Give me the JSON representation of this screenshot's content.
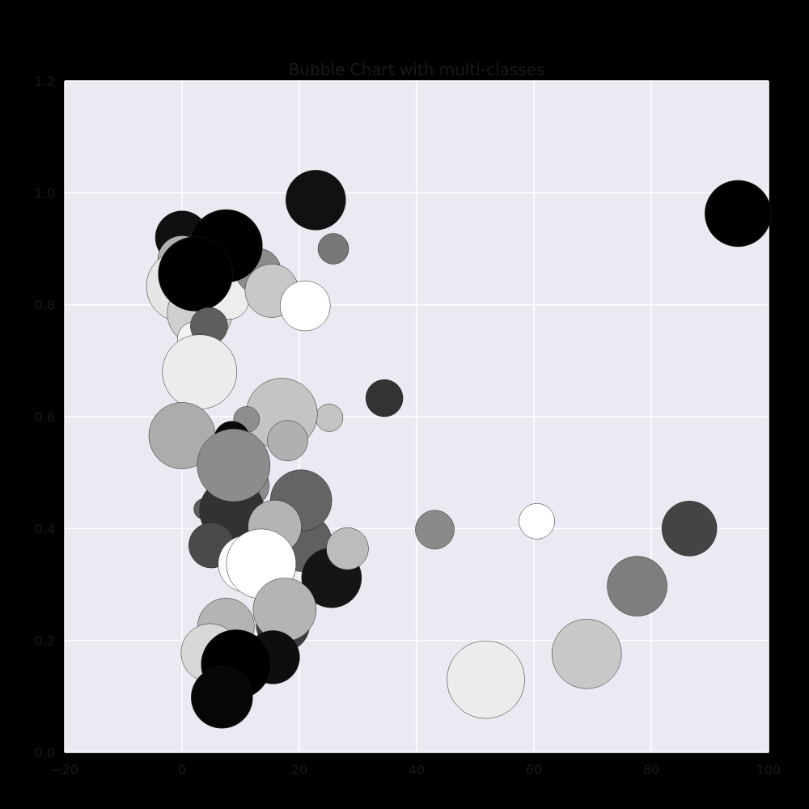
{
  "chart_data": {
    "type": "scatter",
    "title": "Bubble Chart with multi-classes",
    "xlabel": "",
    "ylabel": "",
    "xlim": [
      -20,
      100
    ],
    "ylim": [
      0,
      1.2
    ],
    "x_ticks": [
      "−20",
      "0",
      "20",
      "40",
      "60",
      "80",
      "100"
    ],
    "x_tick_values": [
      -20,
      0,
      20,
      40,
      60,
      80,
      100
    ],
    "y_ticks": [
      "0.0",
      "0.2",
      "0.4",
      "0.6",
      "0.8",
      "1.0",
      "1.2"
    ],
    "y_tick_values": [
      0,
      0.2,
      0.4,
      0.6,
      0.8,
      1.0,
      1.2
    ],
    "grid": true,
    "points": [
      {
        "x": 0,
        "y": 0.92,
        "r": 33,
        "color": "#101010"
      },
      {
        "x": 0,
        "y": 0.88,
        "r": 30,
        "color": "#b0b0b0"
      },
      {
        "x": 0,
        "y": 0.833,
        "r": 44,
        "color": "#e6e6e6"
      },
      {
        "x": 3,
        "y": 0.785,
        "r": 40,
        "color": "#cfcfcf"
      },
      {
        "x": 2,
        "y": 0.74,
        "r": 20,
        "color": "#f2f2f2"
      },
      {
        "x": 8,
        "y": 0.81,
        "r": 25,
        "color": "#ededed"
      },
      {
        "x": 13,
        "y": 0.86,
        "r": 28,
        "color": "#8c8c8c"
      },
      {
        "x": 4,
        "y": 0.89,
        "r": 30,
        "color": "#1e1e1e"
      },
      {
        "x": 7.5,
        "y": 0.905,
        "r": 45,
        "color": "#000000"
      },
      {
        "x": 22.8,
        "y": 0.987,
        "r": 37,
        "color": "#111111"
      },
      {
        "x": 25.8,
        "y": 0.9,
        "r": 19,
        "color": "#777777"
      },
      {
        "x": 15.3,
        "y": 0.825,
        "r": 33,
        "color": "#c8c8c8"
      },
      {
        "x": 21,
        "y": 0.798,
        "r": 31,
        "color": "#ffffff"
      },
      {
        "x": 2.3,
        "y": 0.855,
        "r": 46,
        "color": "#000000"
      },
      {
        "x": 4.6,
        "y": 0.762,
        "r": 23,
        "color": "#5e5e5e"
      },
      {
        "x": 3,
        "y": 0.68,
        "r": 46,
        "color": "#ececec"
      },
      {
        "x": 34.5,
        "y": 0.633,
        "r": 23,
        "color": "#333333"
      },
      {
        "x": 25.1,
        "y": 0.598,
        "r": 17,
        "color": "#c4c4c4"
      },
      {
        "x": 17,
        "y": 0.605,
        "r": 44,
        "color": "#c4c4c4"
      },
      {
        "x": 11,
        "y": 0.595,
        "r": 16,
        "color": "#8e8e8e"
      },
      {
        "x": 18,
        "y": 0.557,
        "r": 25,
        "color": "#b0b0b0"
      },
      {
        "x": 0,
        "y": 0.566,
        "r": 41,
        "color": "#acacac"
      },
      {
        "x": 8.5,
        "y": 0.56,
        "r": 22,
        "color": "#0a0a0a"
      },
      {
        "x": 12,
        "y": 0.525,
        "r": 16,
        "color": "#101010"
      },
      {
        "x": 11,
        "y": 0.477,
        "r": 28,
        "color": "#8c8c8c"
      },
      {
        "x": 3.8,
        "y": 0.435,
        "r": 13,
        "color": "#5c5c5c"
      },
      {
        "x": 8.5,
        "y": 0.432,
        "r": 40,
        "color": "#323232"
      },
      {
        "x": 5,
        "y": 0.37,
        "r": 28,
        "color": "#4a4a4a"
      },
      {
        "x": 20.6,
        "y": 0.375,
        "r": 36,
        "color": "#606060"
      },
      {
        "x": 8.8,
        "y": 0.513,
        "r": 45,
        "color": "#8c8c8c"
      },
      {
        "x": 20.3,
        "y": 0.45,
        "r": 38,
        "color": "#646464"
      },
      {
        "x": 15.8,
        "y": 0.403,
        "r": 33,
        "color": "#b4b4b4"
      },
      {
        "x": 11,
        "y": 0.337,
        "r": 35,
        "color": "#fdfdfd"
      },
      {
        "x": 13.5,
        "y": 0.337,
        "r": 43,
        "color": "#ffffff"
      },
      {
        "x": 25.5,
        "y": 0.312,
        "r": 37,
        "color": "#151515"
      },
      {
        "x": 28.2,
        "y": 0.364,
        "r": 26,
        "color": "#bcbcbc"
      },
      {
        "x": 43.1,
        "y": 0.398,
        "r": 24,
        "color": "#8a8a8a"
      },
      {
        "x": 60.5,
        "y": 0.413,
        "r": 22,
        "color": "#ffffff"
      },
      {
        "x": 86.5,
        "y": 0.4,
        "r": 34,
        "color": "#444444"
      },
      {
        "x": 77.6,
        "y": 0.297,
        "r": 37,
        "color": "#7e7e7e"
      },
      {
        "x": 69,
        "y": 0.176,
        "r": 43,
        "color": "#c8c8c8"
      },
      {
        "x": 51.8,
        "y": 0.13,
        "r": 48,
        "color": "#ececec"
      },
      {
        "x": 94.8,
        "y": 0.963,
        "r": 41,
        "color": "#000000"
      },
      {
        "x": 7.5,
        "y": 0.225,
        "r": 35,
        "color": "#b4b4b4"
      },
      {
        "x": 17.2,
        "y": 0.228,
        "r": 33,
        "color": "#3c3c3c"
      },
      {
        "x": 17.5,
        "y": 0.255,
        "r": 39,
        "color": "#b4b4b4"
      },
      {
        "x": 4.8,
        "y": 0.178,
        "r": 36,
        "color": "#d8d8d8"
      },
      {
        "x": 15.5,
        "y": 0.17,
        "r": 33,
        "color": "#0e0e0e"
      },
      {
        "x": 9.2,
        "y": 0.157,
        "r": 43,
        "color": "#000000"
      },
      {
        "x": 6.8,
        "y": 0.098,
        "r": 38,
        "color": "#060606"
      }
    ]
  }
}
